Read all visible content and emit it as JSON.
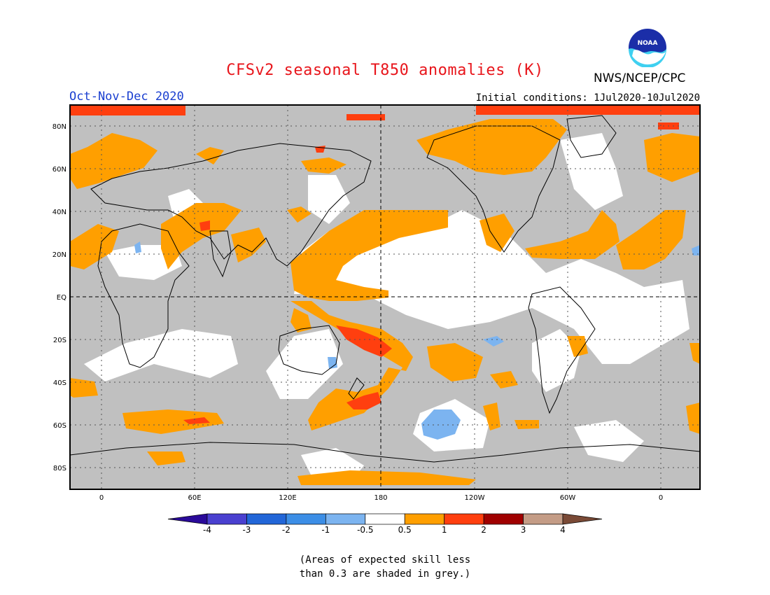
{
  "header": {
    "title": "CFSv2 seasonal T850 anomalies (K)",
    "season": "Oct-Nov-Dec 2020",
    "initial_conditions": "Initial conditions: 1Jul2020-10Jul2020",
    "agency": "NWS/NCEP/CPC",
    "logo_text": "NOAA"
  },
  "map": {
    "lat_labels": [
      "80N",
      "60N",
      "40N",
      "20N",
      "EQ",
      "20S",
      "40S",
      "60S",
      "80S"
    ],
    "lon_labels": [
      "0",
      "60E",
      "120E",
      "180",
      "120W",
      "60W",
      "0"
    ]
  },
  "colorbar": {
    "labels": [
      "-4",
      "-3",
      "-2",
      "-1",
      "-0.5",
      "0.5",
      "1",
      "2",
      "3",
      "4"
    ],
    "colors": [
      "#2a0a9a",
      "#4a40d0",
      "#2266d8",
      "#3c8ee6",
      "#7cb4f0",
      "#ffffff",
      "#ff9f00",
      "#ff3f0f",
      "#a00000",
      "#c49c86",
      "#7a4a36"
    ]
  },
  "footnote": {
    "line1": "(Areas of expected skill less",
    "line2": "than 0.3 are shaded in grey.)"
  },
  "colors": {
    "grey_low_skill": "#c0c0c0",
    "orange_0_5_to_1": "#ff9f00",
    "red_1_to_2": "#ff3f0f",
    "light_blue_neg": "#7cb4f0",
    "title_red": "#e8151b",
    "season_blue": "#1a3fd0"
  }
}
